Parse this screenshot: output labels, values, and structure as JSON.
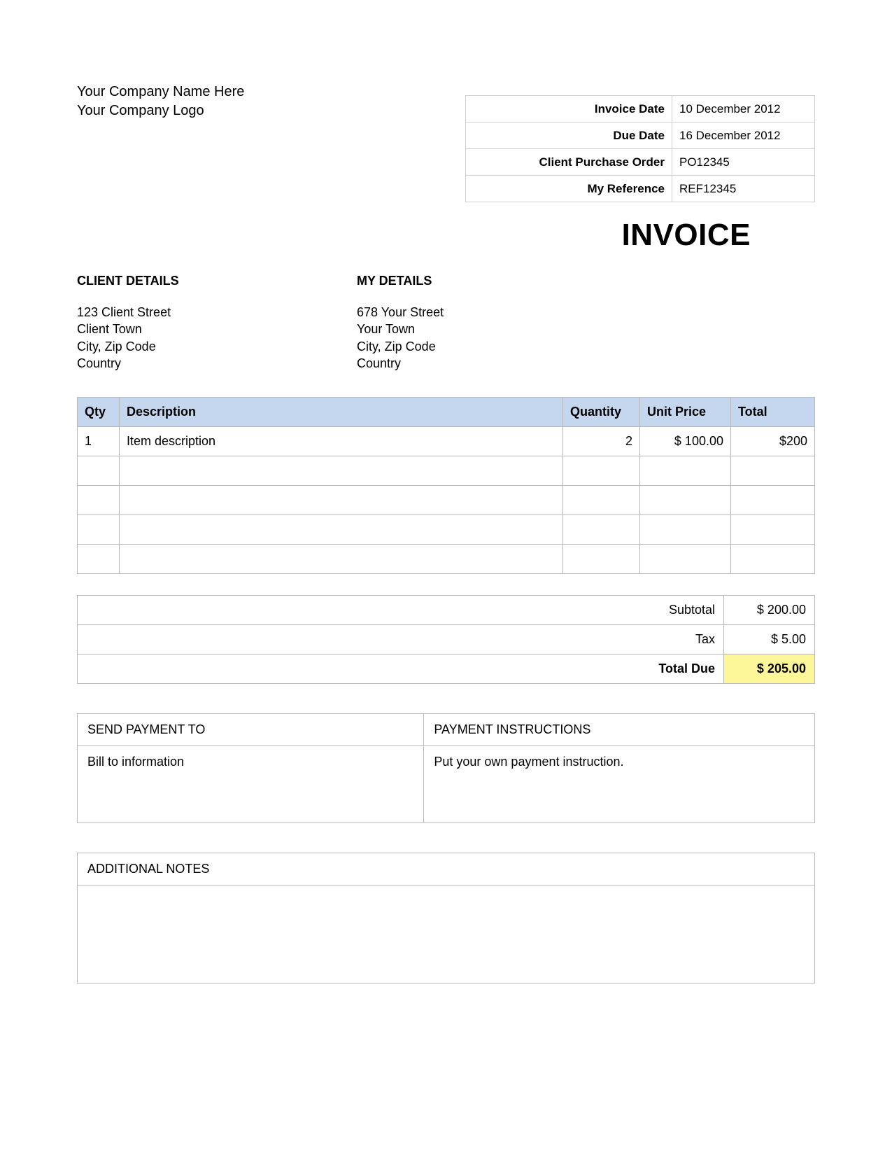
{
  "colors": {
    "header_bg": "#c5d6ef",
    "highlight_bg": "#fef79a",
    "border": "#b8b8b8",
    "meta_border": "#cfcfcf",
    "text": "#000000",
    "page_bg": "#ffffff"
  },
  "company": {
    "name": "Your Company Name Here",
    "logo_text": "Your Company Logo"
  },
  "meta": {
    "invoice_date_label": "Invoice Date",
    "invoice_date": "10 December  2012",
    "due_date_label": "Due Date",
    "due_date": "16 December  2012",
    "cpo_label": "Client Purchase Order",
    "cpo": "PO12345",
    "ref_label": "My Reference",
    "ref": "REF12345"
  },
  "title": "INVOICE",
  "client": {
    "heading": "CLIENT DETAILS",
    "lines": [
      "123 Client Street",
      "Client Town",
      "City, Zip Code",
      "Country"
    ]
  },
  "vendor": {
    "heading": "MY DETAILS",
    "lines": [
      "678 Your Street",
      "Your Town",
      "City, Zip Code",
      "Country"
    ]
  },
  "items": {
    "headers": {
      "qty": "Qty",
      "description": "Description",
      "quantity": "Quantity",
      "unit_price": "Unit Price",
      "total": "Total"
    },
    "rows": [
      {
        "qty": "1",
        "description": "Item description",
        "quantity": "2",
        "unit_price": "$ 100.00",
        "total": "$200"
      },
      {
        "qty": "",
        "description": "",
        "quantity": "",
        "unit_price": "",
        "total": ""
      },
      {
        "qty": "",
        "description": "",
        "quantity": "",
        "unit_price": "",
        "total": ""
      },
      {
        "qty": "",
        "description": "",
        "quantity": "",
        "unit_price": "",
        "total": ""
      },
      {
        "qty": "",
        "description": "",
        "quantity": "",
        "unit_price": "",
        "total": ""
      }
    ]
  },
  "totals": {
    "subtotal_label": "Subtotal",
    "subtotal": "$ 200.00",
    "tax_label": "Tax",
    "tax": "$ 5.00",
    "total_due_label": "Total Due",
    "total_due": "$ 205.00"
  },
  "payment": {
    "send_to_heading": "SEND PAYMENT TO",
    "instructions_heading": "PAYMENT INSTRUCTIONS",
    "send_to_body": "Bill to information",
    "instructions_body": "Put your own payment instruction."
  },
  "notes": {
    "heading": "ADDITIONAL NOTES",
    "body": ""
  }
}
